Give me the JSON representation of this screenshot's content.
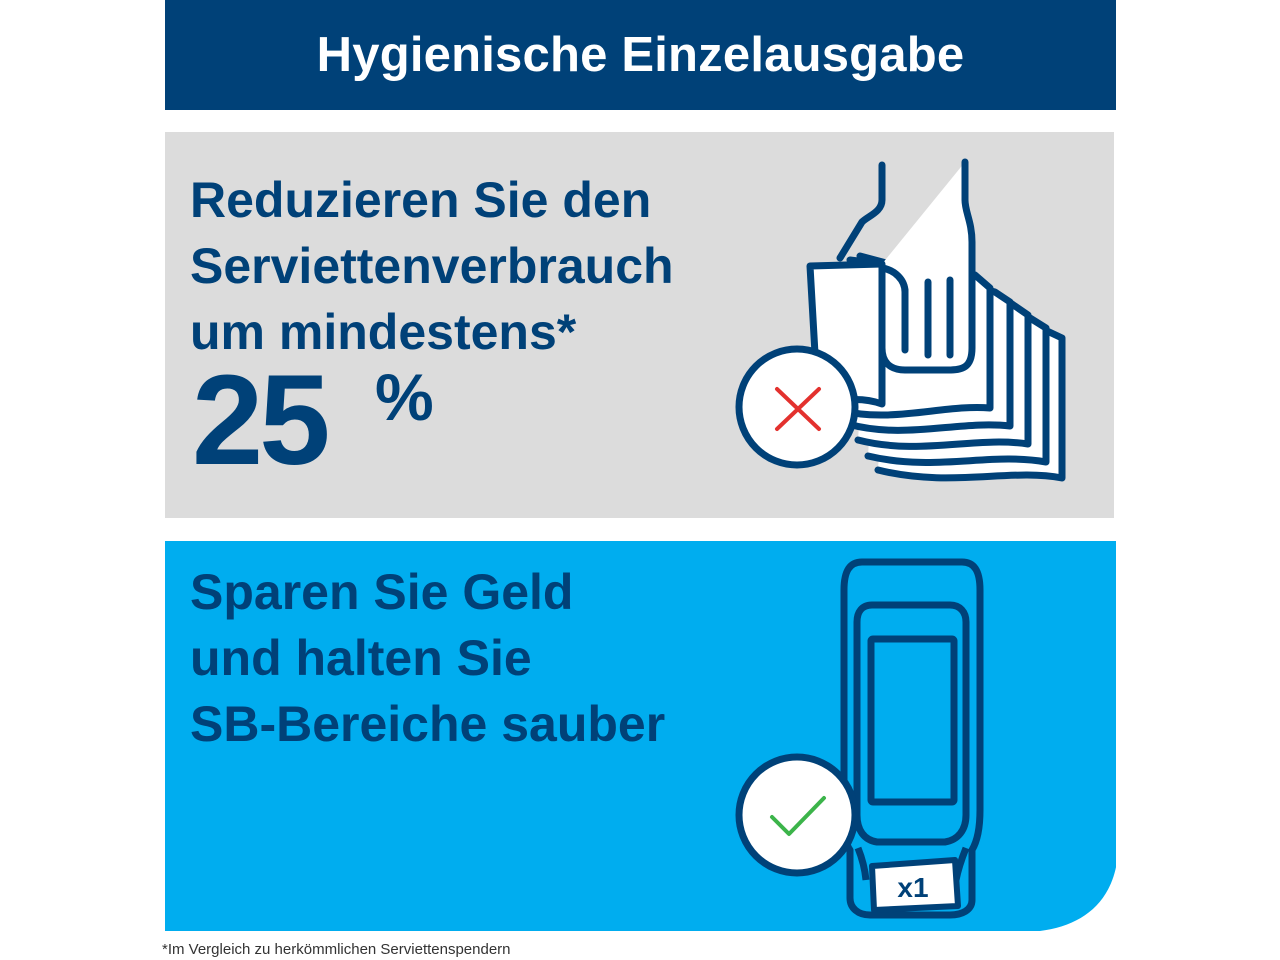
{
  "header": {
    "title": "Hygienische Einzelausgabe"
  },
  "panel_reduce": {
    "lines": [
      "Reduzieren Sie den",
      "Serviettenverbrauch",
      "um mindestens*"
    ],
    "number": "25",
    "unit": "%"
  },
  "panel_save": {
    "lines": [
      "Sparen Sie Geld",
      "und halten Sie",
      "SB-Bereiche sauber"
    ],
    "dispenser_label": "x1"
  },
  "footnote": "*Im Vergleich zu herkömmlichen Serviettenspendern",
  "icons": {
    "reduce": "hand-grabbing-napkins-icon",
    "reduce_badge": "red-cross-icon",
    "save": "napkin-dispenser-icon",
    "save_badge": "green-check-icon"
  },
  "colors": {
    "navy": "#004178",
    "light_gray": "#dcdcdc",
    "sky_blue": "#00adef",
    "cross_red": "#e3312e",
    "check_green": "#3cb44a"
  }
}
